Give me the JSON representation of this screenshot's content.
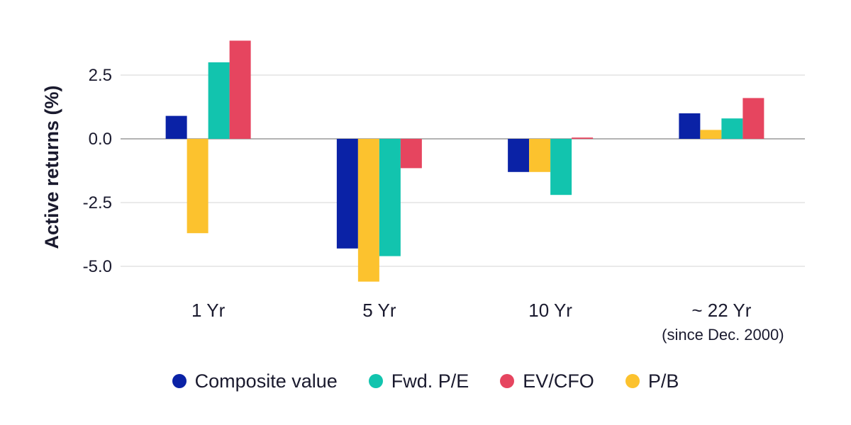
{
  "chart_data": {
    "type": "bar",
    "title": "",
    "xlabel": "",
    "ylabel": "Active returns (%)",
    "ylim": [
      -5.8,
      4.0
    ],
    "yticks": [
      2.5,
      0.0,
      -2.5,
      -5.0
    ],
    "ytick_labels": [
      "2.5",
      "0.0",
      "-2.5",
      "-5.0"
    ],
    "grid": true,
    "legend_position": "bottom",
    "categories": [
      {
        "label": "1 Yr",
        "sublabel": ""
      },
      {
        "label": "5 Yr",
        "sublabel": ""
      },
      {
        "label": "10 Yr",
        "sublabel": ""
      },
      {
        "label": "~ 22 Yr",
        "sublabel": "(since Dec. 2000)"
      }
    ],
    "series": [
      {
        "name": "Composite value",
        "color": "#0a22a6",
        "values": [
          0.9,
          -4.3,
          -1.3,
          1.0
        ]
      },
      {
        "name": "P/B",
        "color": "#fcc22e",
        "values": [
          -3.7,
          -5.6,
          -1.3,
          0.35
        ]
      },
      {
        "name": "Fwd. P/E",
        "color": "#12c4ae",
        "values": [
          3.0,
          -4.6,
          -2.2,
          0.8
        ]
      },
      {
        "name": "EV/CFO",
        "color": "#e6455f",
        "values": [
          3.85,
          -1.15,
          0.05,
          1.6
        ]
      }
    ],
    "legend": [
      {
        "name": "Composite value",
        "color": "#0a22a6"
      },
      {
        "name": "Fwd. P/E",
        "color": "#12c4ae"
      },
      {
        "name": "EV/CFO",
        "color": "#e6455f"
      },
      {
        "name": "P/B",
        "color": "#fcc22e"
      }
    ]
  }
}
